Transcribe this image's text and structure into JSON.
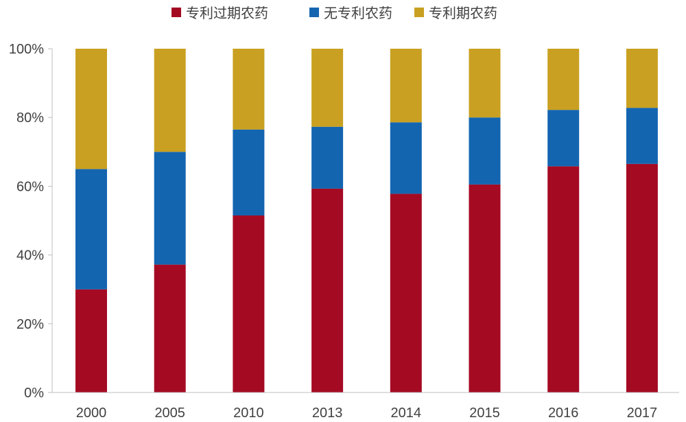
{
  "chart_data": {
    "type": "bar",
    "stacked": true,
    "percent_stacked": true,
    "categories": [
      "2000",
      "2005",
      "2010",
      "2013",
      "2014",
      "2015",
      "2016",
      "2017"
    ],
    "series": [
      {
        "name": "专利过期农药",
        "color": "#A50A23",
        "values": [
          30,
          37.2,
          51.5,
          59.3,
          57.8,
          60.5,
          65.8,
          66.5
        ]
      },
      {
        "name": "无专利农药",
        "color": "#1465B0",
        "values": [
          35,
          32.8,
          25,
          18,
          20.8,
          19.5,
          16.4,
          16.3
        ]
      },
      {
        "name": "专利期农药",
        "color": "#C9A021",
        "values": [
          35,
          30,
          23.5,
          22.7,
          21.4,
          20,
          17.8,
          17.2
        ]
      }
    ],
    "y_ticks": [
      "0%",
      "20%",
      "40%",
      "60%",
      "80%",
      "100%"
    ],
    "ylim": [
      0,
      100
    ],
    "legend_position": "top-center",
    "grid": false
  }
}
